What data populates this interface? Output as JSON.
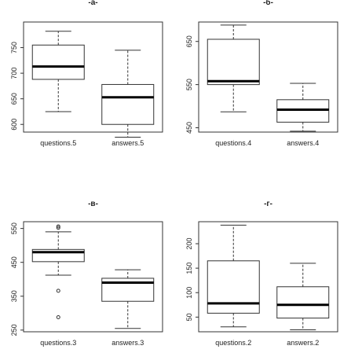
{
  "chart_data": [
    {
      "type": "boxplot",
      "title": "-a-",
      "categories": [
        "questions.5",
        "answers.5"
      ],
      "ylim": [
        585,
        800
      ],
      "yticks": [
        600,
        650,
        700,
        750
      ],
      "boxes": [
        {
          "label": "questions.5",
          "whisker_low": 625,
          "q1": 688,
          "median": 713,
          "q3": 755,
          "whisker_high": 782,
          "outliers": []
        },
        {
          "label": "answers.5",
          "whisker_low": 575,
          "q1": 600,
          "median": 653,
          "q3": 678,
          "whisker_high": 745,
          "outliers": []
        }
      ]
    },
    {
      "type": "boxplot",
      "title": "-б-",
      "categories": [
        "questions.4",
        "answers.4"
      ],
      "ylim": [
        440,
        695
      ],
      "yticks": [
        450,
        550,
        650
      ],
      "boxes": [
        {
          "label": "questions.4",
          "whisker_low": 487,
          "q1": 550,
          "median": 558,
          "q3": 655,
          "whisker_high": 688,
          "outliers": []
        },
        {
          "label": "answers.4",
          "whisker_low": 442,
          "q1": 463,
          "median": 492,
          "q3": 515,
          "whisker_high": 553,
          "outliers": []
        }
      ]
    },
    {
      "type": "boxplot",
      "title": "-в-",
      "categories": [
        "questions.3",
        "answers.3"
      ],
      "ylim": [
        245,
        570
      ],
      "yticks": [
        250,
        350,
        450,
        550
      ],
      "boxes": [
        {
          "label": "questions.3",
          "whisker_low": 412,
          "q1": 452,
          "median": 480,
          "q3": 488,
          "whisker_high": 540,
          "outliers": [
            556,
            552,
            366,
            288
          ]
        },
        {
          "label": "answers.3",
          "whisker_low": 255,
          "q1": 335,
          "median": 390,
          "q3": 403,
          "whisker_high": 428,
          "outliers": []
        }
      ]
    },
    {
      "type": "boxplot",
      "title": "-г-",
      "categories": [
        "questions.2",
        "answers.2"
      ],
      "ylim": [
        20,
        245
      ],
      "yticks": [
        50,
        100,
        150,
        200
      ],
      "boxes": [
        {
          "label": "questions.2",
          "whisker_low": 30,
          "q1": 58,
          "median": 78,
          "q3": 165,
          "whisker_high": 238,
          "outliers": []
        },
        {
          "label": "answers.2",
          "whisker_low": 24,
          "q1": 48,
          "median": 75,
          "q3": 112,
          "whisker_high": 160,
          "outliers": []
        }
      ]
    }
  ]
}
